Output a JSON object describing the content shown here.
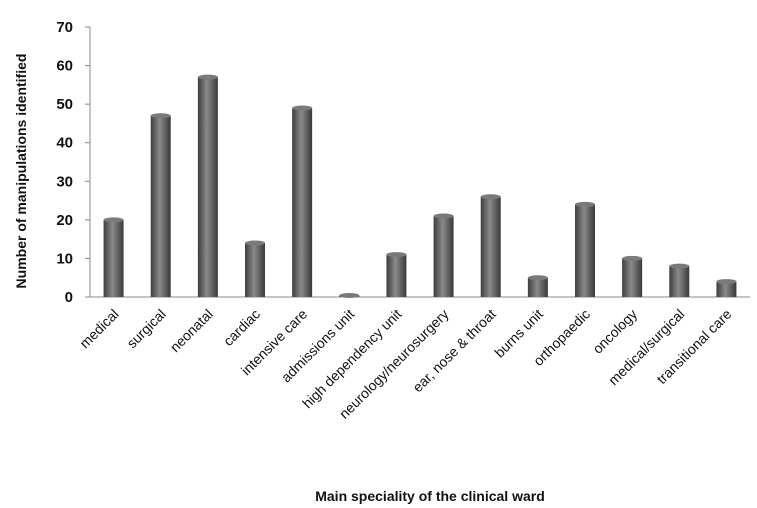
{
  "chart_data": {
    "type": "bar",
    "title": "",
    "xlabel": "Main speciality of the clinical ward",
    "ylabel": "Number of manipulations identified",
    "ylim": [
      0,
      70
    ],
    "yticks": [
      0,
      10,
      20,
      30,
      40,
      50,
      60,
      70
    ],
    "grid": false,
    "legend": "none",
    "categories": [
      "medical",
      "surgical",
      "neonatal",
      "cardiac",
      "intensive care",
      "admissions unit",
      "high dependency unit",
      "neurology/neurosurgery",
      "ear, nose & throat",
      "burns unit",
      "orthopaedic",
      "oncology",
      "medical/surgical",
      "transitional care"
    ],
    "values": [
      20,
      47,
      57,
      14,
      49,
      0,
      11,
      21,
      26,
      5,
      24,
      10,
      8,
      4
    ],
    "bar_color": "#5a5a5a"
  }
}
